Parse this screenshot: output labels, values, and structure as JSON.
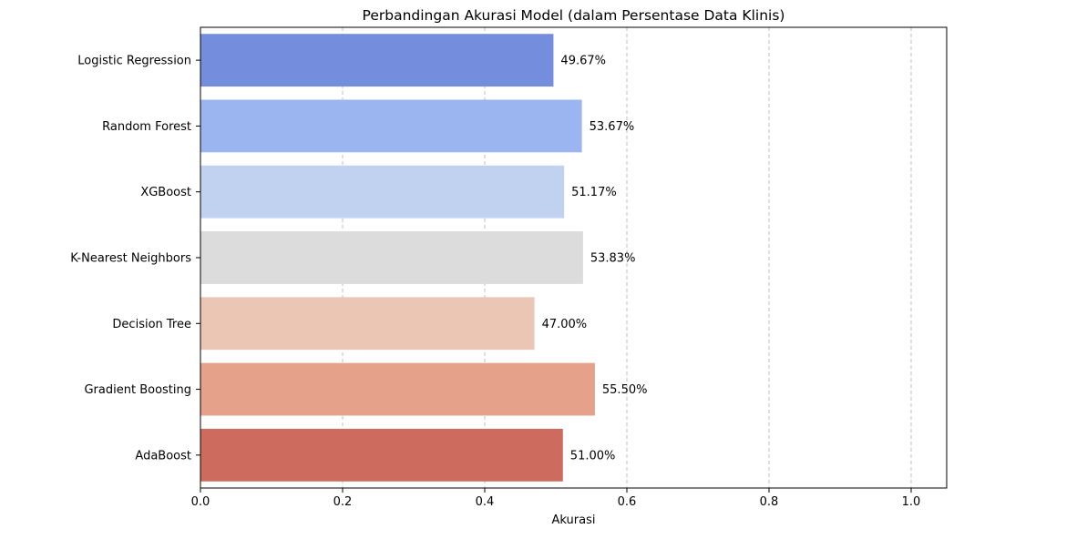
{
  "chart_data": {
    "type": "bar",
    "orientation": "horizontal",
    "title": "Perbandingan Akurasi Model (dalam Persentase Data Klinis)",
    "xlabel": "Akurasi",
    "ylabel": "",
    "xlim": [
      0,
      1.05
    ],
    "xticks": [
      0.0,
      0.2,
      0.4,
      0.6,
      0.8,
      1.0
    ],
    "xtick_labels": [
      "0.0",
      "0.2",
      "0.4",
      "0.6",
      "0.8",
      "1.0"
    ],
    "grid": "x-axis dashed",
    "categories": [
      "Logistic Regression",
      "Random Forest",
      "XGBoost",
      "K-Nearest Neighbors",
      "Decision Tree",
      "Gradient Boosting",
      "AdaBoost"
    ],
    "values": [
      0.4967,
      0.5367,
      0.5117,
      0.5383,
      0.47,
      0.555,
      0.51
    ],
    "data_labels": [
      "49.67%",
      "53.67%",
      "51.17%",
      "53.83%",
      "47.00%",
      "55.50%",
      "51.00%"
    ],
    "colors": [
      "#758ddd",
      "#9bb5f1",
      "#c0d2f0",
      "#dcdcdc",
      "#ebc6b5",
      "#e5a18a",
      "#cd6c5e"
    ]
  }
}
